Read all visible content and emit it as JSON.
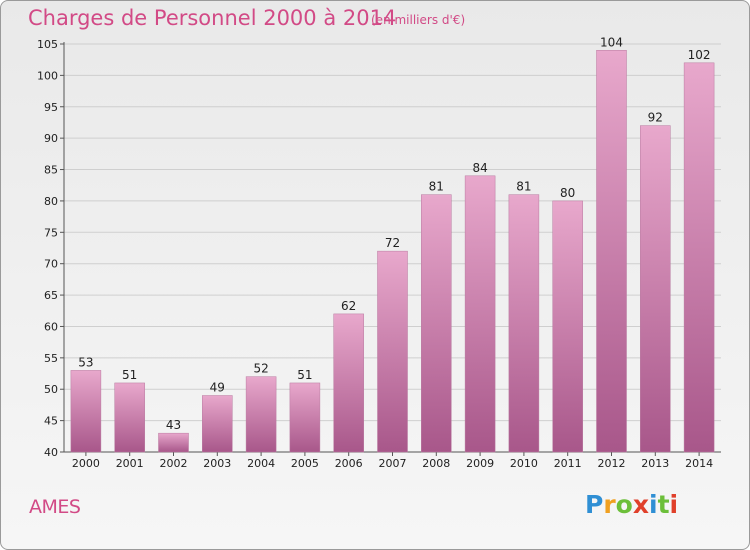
{
  "title": "Charges de Personnel 2000 à 2014",
  "subtitle": "(en milliers d'€)",
  "commune": "AMES",
  "logo": {
    "letters": [
      "P",
      "r",
      "o",
      "x",
      "i",
      "t",
      "i"
    ],
    "colors": [
      "#2f8fd4",
      "#f0a020",
      "#6cbf3a",
      "#e0402a",
      "#2f8fd4",
      "#6cbf3a",
      "#e0402a"
    ]
  },
  "colors": {
    "bar_light": "#e8a8cc",
    "bar_dark": "#a8578a",
    "accent": "#d24a86"
  },
  "chart_data": {
    "type": "bar",
    "title": "Charges de Personnel 2000 à 2014",
    "subtitle": "(en milliers d'€)",
    "categories": [
      "2000",
      "2001",
      "2002",
      "2003",
      "2004",
      "2005",
      "2006",
      "2007",
      "2008",
      "2009",
      "2010",
      "2011",
      "2012",
      "2013",
      "2014"
    ],
    "values": [
      53,
      51,
      43,
      49,
      52,
      51,
      62,
      72,
      81,
      84,
      81,
      80,
      104,
      92,
      102
    ],
    "ylim": [
      40,
      105
    ],
    "yticks": [
      40,
      45,
      50,
      55,
      60,
      65,
      70,
      75,
      80,
      85,
      90,
      95,
      100,
      105
    ],
    "grid": true,
    "xlabel": "",
    "ylabel": ""
  }
}
